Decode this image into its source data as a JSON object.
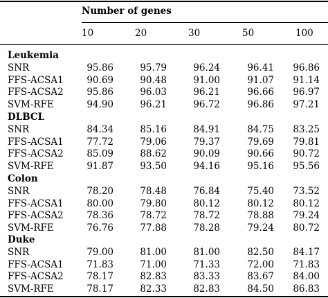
{
  "header": {
    "title": "Number of genes",
    "columns": [
      "10",
      "20",
      "30",
      "50",
      "100"
    ]
  },
  "groups": [
    {
      "name": "Leukemia",
      "rows": [
        {
          "method": "SNR",
          "values": [
            "95.86",
            "95.79",
            "96.24",
            "96.41",
            "96.86"
          ]
        },
        {
          "method": "FFS-ACSA1",
          "values": [
            "90.69",
            "90.48",
            "91.00",
            "91.07",
            "91.14"
          ]
        },
        {
          "method": "FFS-ACSA2",
          "values": [
            "95.86",
            "96.03",
            "96.21",
            "96.66",
            "96.97"
          ]
        },
        {
          "method": "SVM-RFE",
          "values": [
            "94.90",
            "96.21",
            "96.72",
            "96.86",
            "97.21"
          ]
        }
      ]
    },
    {
      "name": "DLBCL",
      "rows": [
        {
          "method": "SNR",
          "values": [
            "84.34",
            "85.16",
            "84.91",
            "84.75",
            "83.25"
          ]
        },
        {
          "method": "FFS-ACSA1",
          "values": [
            "77.72",
            "79.06",
            "79.37",
            "79.69",
            "79.81"
          ]
        },
        {
          "method": "FFS-ACSA2",
          "values": [
            "85.09",
            "88.62",
            "90.09",
            "90.66",
            "90.72"
          ]
        },
        {
          "method": "SVM-RFE",
          "values": [
            "91.87",
            "93.50",
            "94.16",
            "95.16",
            "95.56"
          ]
        }
      ]
    },
    {
      "name": "Colon",
      "rows": [
        {
          "method": "SNR",
          "values": [
            "78.20",
            "78.48",
            "76.84",
            "75.40",
            "73.52"
          ]
        },
        {
          "method": "FFS-ACSA1",
          "values": [
            "80.00",
            "79.80",
            "80.12",
            "80.12",
            "80.12"
          ]
        },
        {
          "method": "FFS-ACSA2",
          "values": [
            "78.36",
            "78.72",
            "78.72",
            "78.88",
            "79.24"
          ]
        },
        {
          "method": "SVM-RFE",
          "values": [
            "76.76",
            "77.88",
            "78.28",
            "79.24",
            "80.72"
          ]
        }
      ]
    },
    {
      "name": "Duke",
      "rows": [
        {
          "method": "SNR",
          "values": [
            "79.00",
            "81.00",
            "81.00",
            "82.50",
            "84.17"
          ]
        },
        {
          "method": "FFS-ACSA1",
          "values": [
            "71.83",
            "71.00",
            "71.33",
            "72.00",
            "71.83"
          ]
        },
        {
          "method": "FFS-ACSA2",
          "values": [
            "78.17",
            "82.83",
            "83.33",
            "83.67",
            "84.00"
          ]
        },
        {
          "method": "SVM-RFE",
          "values": [
            "78.17",
            "82.33",
            "82.83",
            "84.50",
            "86.83"
          ]
        }
      ]
    }
  ]
}
